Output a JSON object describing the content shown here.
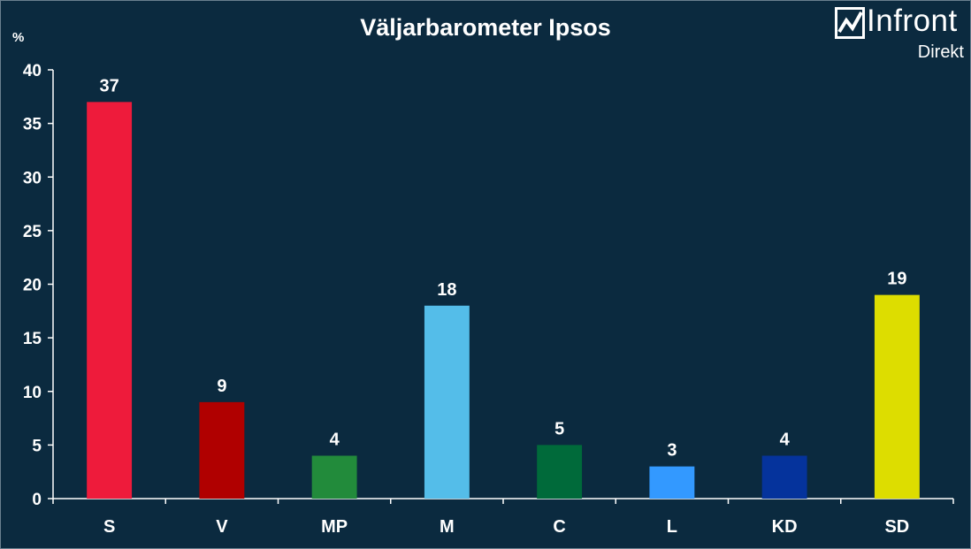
{
  "header": {
    "title": "Väljarbarometer Ipsos",
    "unit": "%"
  },
  "logo": {
    "name": "Infront",
    "sub": "Direkt",
    "icon": "trend-chart-icon"
  },
  "colors": {
    "background": "#0b2a3f",
    "axis": "#ffffff"
  },
  "chart_data": {
    "type": "bar",
    "title": "Väljarbarometer Ipsos",
    "ylabel": "%",
    "xlabel": "",
    "ylim": [
      0,
      40
    ],
    "yticks": [
      0,
      5,
      10,
      15,
      20,
      25,
      30,
      35,
      40
    ],
    "grid": false,
    "categories": [
      "S",
      "V",
      "MP",
      "M",
      "C",
      "L",
      "KD",
      "SD"
    ],
    "values": [
      37,
      9,
      4,
      18,
      5,
      3,
      4,
      19
    ],
    "bar_colors": [
      "#ee1b3b",
      "#b00000",
      "#228b3b",
      "#54bde9",
      "#006a3a",
      "#3399ff",
      "#05339c",
      "#dddd00"
    ]
  }
}
